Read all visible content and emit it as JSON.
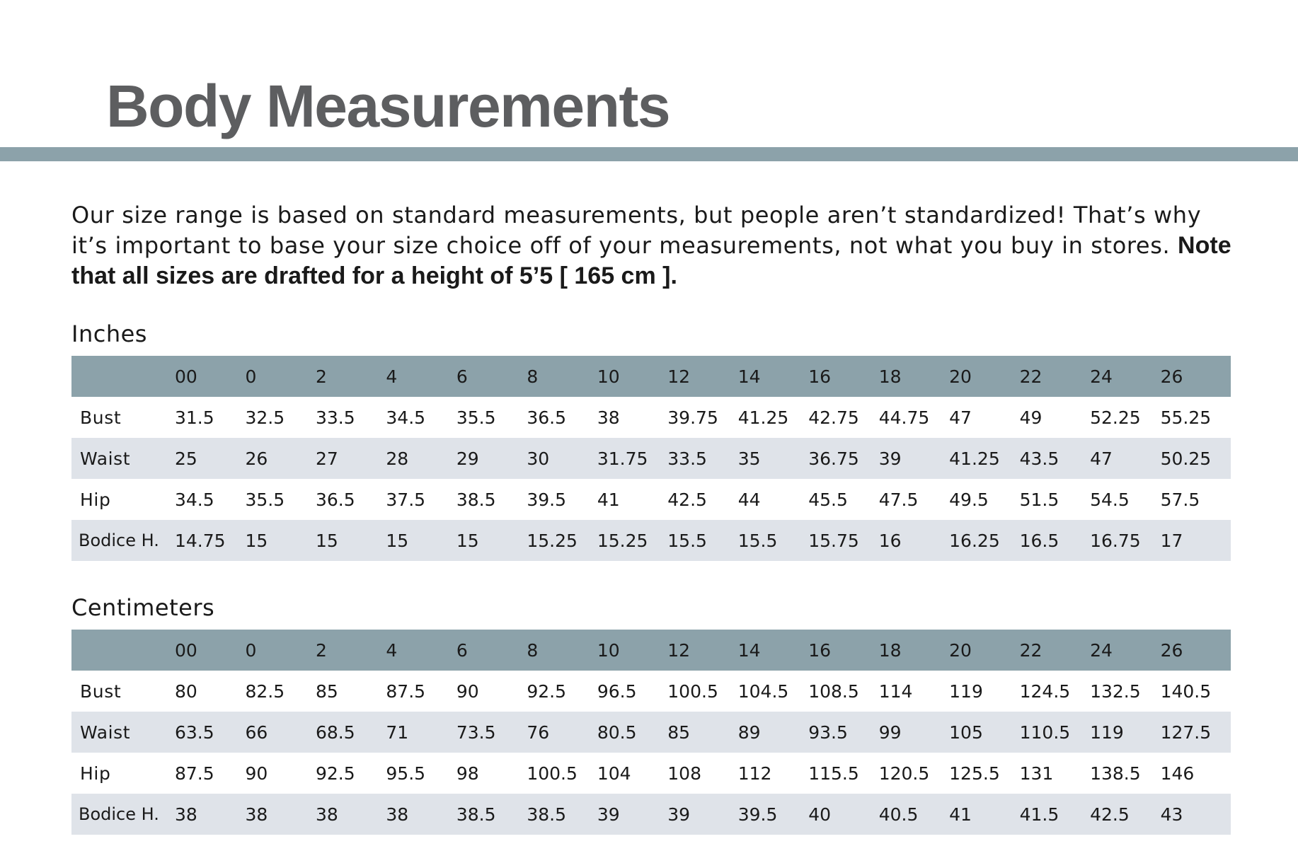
{
  "title": "Body Measurements",
  "intro": {
    "text": "Our size range is based on standard measurements, but people aren’t standardized! That’s why it’s important to base your size choice off of your measurements, not what you buy in stores.",
    "bold_text": "Note that all sizes are drafted for a height of 5’5 [ 165 cm ]."
  },
  "sizes": [
    "00",
    "0",
    "2",
    "4",
    "6",
    "8",
    "10",
    "12",
    "14",
    "16",
    "18",
    "20",
    "22",
    "24",
    "26"
  ],
  "tables": [
    {
      "label": "Inches",
      "rows": [
        {
          "name": "Bust",
          "values": [
            "31.5",
            "32.5",
            "33.5",
            "34.5",
            "35.5",
            "36.5",
            "38",
            "39.75",
            "41.25",
            "42.75",
            "44.75",
            "47",
            "49",
            "52.25",
            "55.25"
          ]
        },
        {
          "name": "Waist",
          "values": [
            "25",
            "26",
            "27",
            "28",
            "29",
            "30",
            "31.75",
            "33.5",
            "35",
            "36.75",
            "39",
            "41.25",
            "43.5",
            "47",
            "50.25"
          ]
        },
        {
          "name": "Hip",
          "values": [
            "34.5",
            "35.5",
            "36.5",
            "37.5",
            "38.5",
            "39.5",
            "41",
            "42.5",
            "44",
            "45.5",
            "47.5",
            "49.5",
            "51.5",
            "54.5",
            "57.5"
          ]
        },
        {
          "name": "Bodice H.",
          "values": [
            "14.75",
            "15",
            "15",
            "15",
            "15",
            "15.25",
            "15.25",
            "15.5",
            "15.5",
            "15.75",
            "16",
            "16.25",
            "16.5",
            "16.75",
            "17"
          ]
        }
      ]
    },
    {
      "label": "Centimeters",
      "rows": [
        {
          "name": "Bust",
          "values": [
            "80",
            "82.5",
            "85",
            "87.5",
            "90",
            "92.5",
            "96.5",
            "100.5",
            "104.5",
            "108.5",
            "114",
            "119",
            "124.5",
            "132.5",
            "140.5"
          ]
        },
        {
          "name": "Waist",
          "values": [
            "63.5",
            "66",
            "68.5",
            "71",
            "73.5",
            "76",
            "80.5",
            "85",
            "89",
            "93.5",
            "99",
            "105",
            "110.5",
            "119",
            "127.5"
          ]
        },
        {
          "name": "Hip",
          "values": [
            "87.5",
            "90",
            "92.5",
            "95.5",
            "98",
            "100.5",
            "104",
            "108",
            "112",
            "115.5",
            "120.5",
            "125.5",
            "131",
            "138.5",
            "146"
          ]
        },
        {
          "name": "Bodice H.",
          "values": [
            "38",
            "38",
            "38",
            "38",
            "38.5",
            "38.5",
            "39",
            "39",
            "39.5",
            "40",
            "40.5",
            "41",
            "41.5",
            "42.5",
            "43"
          ]
        }
      ]
    }
  ],
  "colors": {
    "title": "#5d5e60",
    "accent_bar": "#8ca2aa",
    "header_row": "#8ca2aa",
    "stripe_row": "#dfe3e9",
    "text": "#1a1a1a"
  }
}
